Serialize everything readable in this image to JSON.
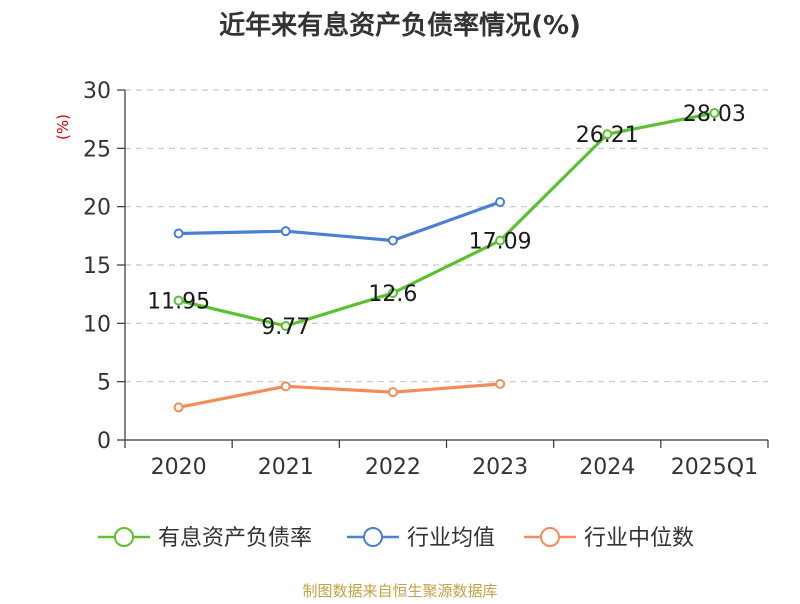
{
  "chart_data": {
    "type": "line",
    "title": "近年来有息资产负债率情况(%)",
    "xlabel": "",
    "ylabel": "(%)",
    "categories": [
      "2020",
      "2021",
      "2022",
      "2023",
      "2024",
      "2025Q1"
    ],
    "ylim": [
      0,
      30
    ],
    "yticks": [
      0,
      5,
      10,
      15,
      20,
      25,
      30
    ],
    "grid": "horizontal-dashed",
    "legend_placement": "bottom",
    "series": [
      {
        "name": "有息资产负债率",
        "color": "#5cc12f",
        "values": [
          11.95,
          9.77,
          12.6,
          17.09,
          26.21,
          28.03
        ],
        "labels": [
          "11.95",
          "9.77",
          "12.6",
          "17.09",
          "26.21",
          "28.03"
        ]
      },
      {
        "name": "行业均值",
        "color": "#4a7fd4",
        "values": [
          17.7,
          17.9,
          17.1,
          20.4,
          null,
          null
        ]
      },
      {
        "name": "行业中位数",
        "color": "#f28c5a",
        "values": [
          2.8,
          4.6,
          4.1,
          4.8,
          null,
          null
        ]
      }
    ],
    "source": "制图数据来自恒生聚源数据库"
  }
}
